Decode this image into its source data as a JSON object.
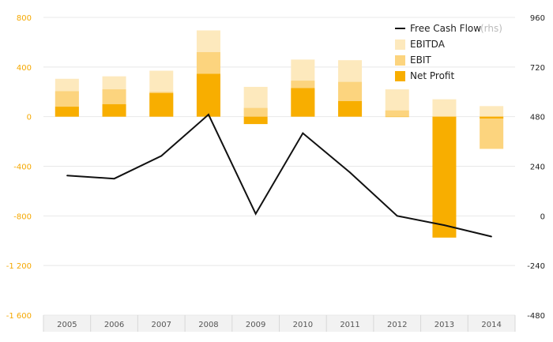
{
  "chart_data": {
    "type": "bar",
    "categories": [
      "2005",
      "2006",
      "2007",
      "2008",
      "2009",
      "2010",
      "2011",
      "2012",
      "2013",
      "2014"
    ],
    "series": [
      {
        "name": "EBITDA",
        "kind": "bar",
        "axis": "left",
        "color": "#fde9bd",
        "values": [
          305,
          325,
          370,
          695,
          240,
          460,
          455,
          220,
          140,
          85
        ]
      },
      {
        "name": "EBIT",
        "kind": "bar",
        "axis": "left",
        "color": "#fcd47e",
        "values": [
          205,
          220,
          200,
          520,
          70,
          290,
          280,
          50,
          -10,
          -260
        ]
      },
      {
        "name": "Net Profit",
        "kind": "bar",
        "axis": "left",
        "color": "#f8ae00",
        "values": [
          80,
          100,
          190,
          345,
          -60,
          230,
          125,
          0,
          -975,
          -15
        ]
      },
      {
        "name": "Free Cash Flow",
        "kind": "line",
        "axis": "right",
        "color": "#111111",
        "values": [
          195,
          180,
          290,
          490,
          10,
          400,
          210,
          0,
          -45,
          -100
        ]
      }
    ],
    "y_left": {
      "ticks": [
        800,
        400,
        0,
        -400,
        -800,
        -1200,
        -1600
      ],
      "labels": [
        "800",
        "400",
        "0",
        "-400",
        "-800",
        "-1 200",
        "-1 600"
      ],
      "range": [
        -1600,
        800
      ]
    },
    "y_right": {
      "ticks": [
        960,
        720,
        480,
        240,
        0,
        -240,
        -480
      ],
      "labels": [
        "960",
        "720",
        "480",
        "240",
        "0",
        "-240",
        "-480"
      ],
      "range": [
        -480,
        960
      ]
    },
    "legend": {
      "position": "top-right",
      "items": [
        {
          "label": "Free Cash Flow",
          "suffix": "(rhs)",
          "swatch": "line",
          "color": "#111111"
        },
        {
          "label": "EBITDA",
          "swatch": "box",
          "color": "#fde9bd"
        },
        {
          "label": "EBIT",
          "swatch": "box",
          "color": "#fcd47e"
        },
        {
          "label": "Net Profit",
          "swatch": "box",
          "color": "#f8ae00"
        }
      ]
    },
    "grid": true,
    "colors": {
      "left_axis": "#f5a800",
      "right_axis": "#222222",
      "grid": "#e8e8e8",
      "x_band": "#f2f2f2"
    }
  }
}
